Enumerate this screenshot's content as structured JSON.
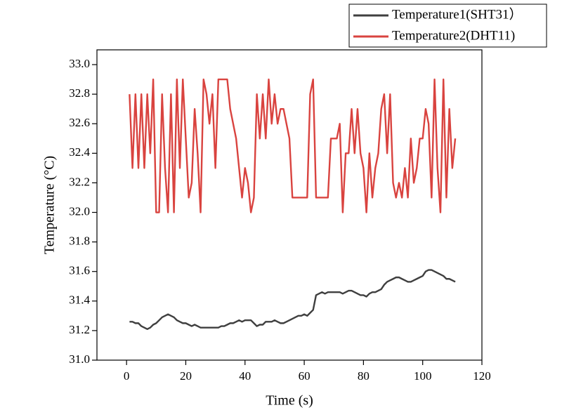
{
  "chart_data": {
    "type": "line",
    "xlabel": "Time (s)",
    "ylabel": "Temperature (°C)",
    "xlim": [
      -10,
      120
    ],
    "xticks": [
      0,
      20,
      40,
      60,
      80,
      100,
      120
    ],
    "ylim": [
      31.0,
      33.1
    ],
    "yticks": [
      {
        "value": 31.0,
        "label": "31.0"
      },
      31.2,
      31.4,
      31.6,
      31.8,
      {
        "value": 32.0,
        "label": "32.0"
      },
      32.2,
      32.4,
      32.6,
      32.8,
      {
        "value": 33.0,
        "label": "33.0"
      }
    ],
    "legend": "upper right",
    "x": [
      1,
      2,
      3,
      4,
      5,
      6,
      7,
      8,
      9,
      10,
      11,
      12,
      13,
      14,
      15,
      16,
      17,
      18,
      19,
      20,
      21,
      22,
      23,
      24,
      25,
      26,
      27,
      28,
      29,
      30,
      31,
      32,
      33,
      34,
      35,
      36,
      37,
      38,
      39,
      40,
      41,
      42,
      43,
      44,
      45,
      46,
      47,
      48,
      49,
      50,
      51,
      52,
      53,
      54,
      55,
      56,
      57,
      58,
      59,
      60,
      61,
      62,
      63,
      64,
      65,
      66,
      67,
      68,
      69,
      70,
      71,
      72,
      73,
      74,
      75,
      76,
      77,
      78,
      79,
      80,
      81,
      82,
      83,
      84,
      85,
      86,
      87,
      88,
      89,
      90,
      91,
      92,
      93,
      94,
      95,
      96,
      97,
      98,
      99,
      100,
      101,
      102,
      103,
      104,
      105,
      106,
      107,
      108,
      109,
      110,
      111
    ],
    "series": [
      {
        "name": "Temperature1(SHT31）",
        "color": "#3f3f3f",
        "values": [
          31.26,
          31.26,
          31.25,
          31.25,
          31.23,
          31.22,
          31.21,
          31.22,
          31.24,
          31.25,
          31.27,
          31.29,
          31.3,
          31.31,
          31.3,
          31.29,
          31.27,
          31.26,
          31.25,
          31.25,
          31.24,
          31.23,
          31.24,
          31.23,
          31.22,
          31.22,
          31.22,
          31.22,
          31.22,
          31.22,
          31.22,
          31.23,
          31.23,
          31.24,
          31.25,
          31.25,
          31.26,
          31.27,
          31.26,
          31.27,
          31.27,
          31.27,
          31.25,
          31.23,
          31.24,
          31.24,
          31.26,
          31.26,
          31.26,
          31.27,
          31.26,
          31.25,
          31.25,
          31.26,
          31.27,
          31.28,
          31.29,
          31.3,
          31.3,
          31.31,
          31.3,
          31.32,
          31.34,
          31.44,
          31.45,
          31.46,
          31.45,
          31.46,
          31.46,
          31.46,
          31.46,
          31.46,
          31.45,
          31.46,
          31.47,
          31.47,
          31.46,
          31.45,
          31.44,
          31.44,
          31.43,
          31.45,
          31.46,
          31.46,
          31.47,
          31.48,
          31.51,
          31.53,
          31.54,
          31.55,
          31.56,
          31.56,
          31.55,
          31.54,
          31.53,
          31.53,
          31.54,
          31.55,
          31.56,
          31.57,
          31.6,
          31.61,
          31.61,
          31.6,
          31.59,
          31.58,
          31.57,
          31.55,
          31.55,
          31.54,
          31.53
        ]
      },
      {
        "name": "Temperature2(DHT11)",
        "color": "#d9433f",
        "values": [
          32.8,
          32.3,
          32.8,
          32.3,
          32.8,
          32.3,
          32.8,
          32.4,
          32.9,
          32.0,
          32.0,
          32.8,
          32.3,
          32.0,
          32.8,
          32.0,
          32.9,
          32.3,
          32.9,
          32.5,
          32.1,
          32.2,
          32.7,
          32.4,
          32.0,
          32.9,
          32.8,
          32.6,
          32.8,
          32.3,
          32.9,
          32.9,
          32.9,
          32.9,
          32.7,
          32.6,
          32.5,
          32.3,
          32.1,
          32.3,
          32.2,
          32.0,
          32.1,
          32.8,
          32.5,
          32.8,
          32.5,
          32.9,
          32.6,
          32.8,
          32.6,
          32.7,
          32.7,
          32.6,
          32.5,
          32.1,
          32.1,
          32.1,
          32.1,
          32.1,
          32.1,
          32.8,
          32.9,
          32.1,
          32.1,
          32.1,
          32.1,
          32.1,
          32.5,
          32.5,
          32.5,
          32.6,
          32.0,
          32.4,
          32.4,
          32.7,
          32.4,
          32.7,
          32.4,
          32.3,
          32.0,
          32.4,
          32.1,
          32.3,
          32.4,
          32.7,
          32.8,
          32.4,
          32.8,
          32.2,
          32.1,
          32.2,
          32.1,
          32.3,
          32.1,
          32.5,
          32.2,
          32.3,
          32.5,
          32.5,
          32.7,
          32.6,
          32.1,
          32.9,
          32.3,
          32.0,
          32.9,
          32.1,
          32.7,
          32.3,
          32.5
        ]
      }
    ]
  }
}
